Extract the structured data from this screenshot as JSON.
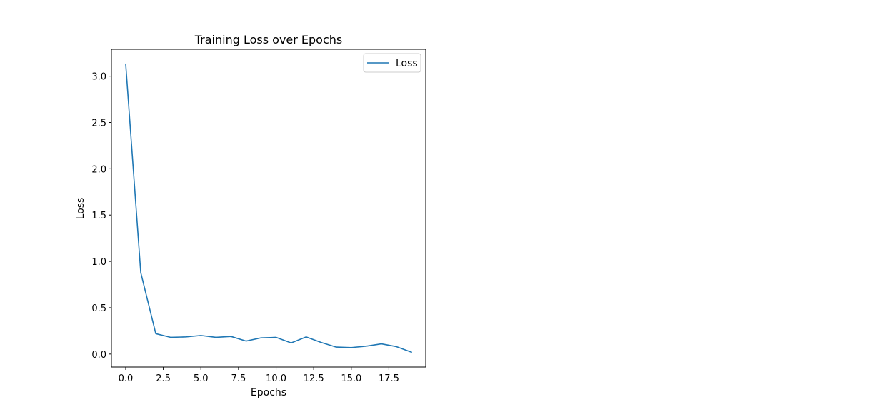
{
  "chart_data": {
    "type": "line",
    "title": "Training Loss over Epochs",
    "xlabel": "Epochs",
    "ylabel": "Loss",
    "xlim": [
      -0.95,
      19.95
    ],
    "ylim": [
      -0.14,
      3.29
    ],
    "xticks": [
      0.0,
      2.5,
      5.0,
      7.5,
      10.0,
      12.5,
      15.0,
      17.5
    ],
    "xtick_labels": [
      "0.0",
      "2.5",
      "5.0",
      "7.5",
      "10.0",
      "12.5",
      "15.0",
      "17.5"
    ],
    "yticks": [
      0.0,
      0.5,
      1.0,
      1.5,
      2.0,
      2.5,
      3.0
    ],
    "ytick_labels": [
      "0.0",
      "0.5",
      "1.0",
      "1.5",
      "2.0",
      "2.5",
      "3.0"
    ],
    "grid": false,
    "legend_position": "top-right",
    "series": [
      {
        "name": "Loss",
        "color": "#1f77b4",
        "x": [
          0,
          1,
          2,
          3,
          4,
          5,
          6,
          7,
          8,
          9,
          10,
          11,
          12,
          13,
          14,
          15,
          16,
          17,
          18,
          19
        ],
        "y": [
          3.13,
          0.88,
          0.22,
          0.18,
          0.185,
          0.2,
          0.18,
          0.19,
          0.14,
          0.175,
          0.18,
          0.12,
          0.185,
          0.125,
          0.075,
          0.07,
          0.085,
          0.11,
          0.08,
          0.02
        ]
      }
    ]
  }
}
